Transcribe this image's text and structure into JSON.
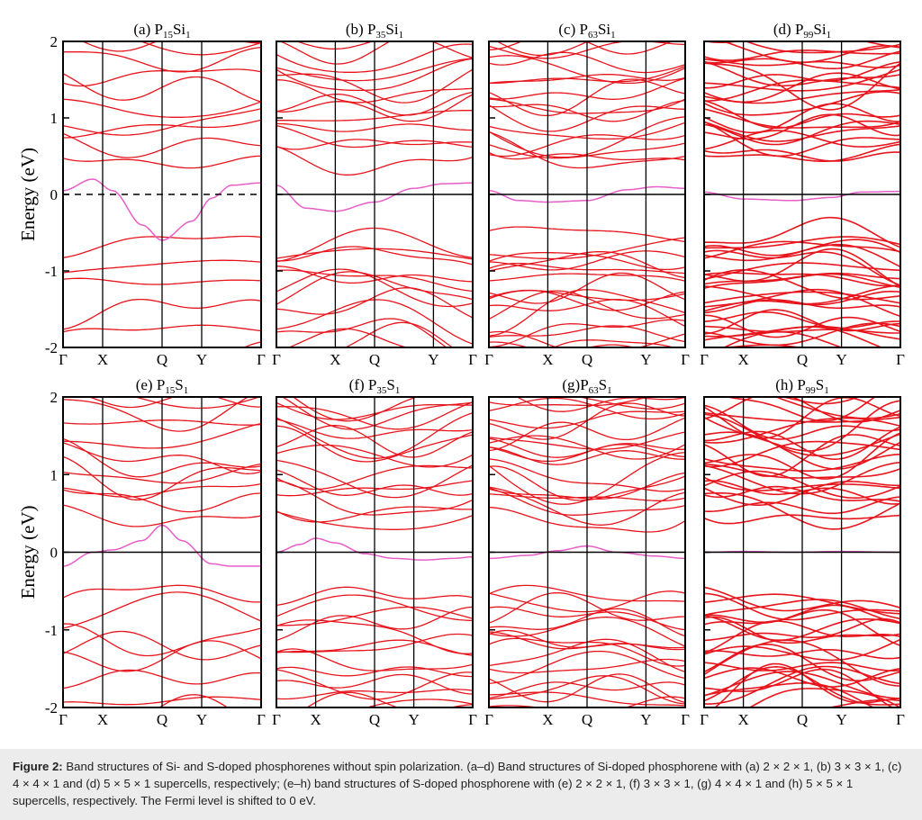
{
  "colors": {
    "band": "#e8141c",
    "defect_band": "#e85dc8",
    "axis": "#000000",
    "caption_bg": "#ececec"
  },
  "y_axis_label": "Energy (eV)",
  "caption": {
    "lead": "Figure 2:",
    "text": " Band structures of Si- and S-doped phosphorenes without spin polarization. (a–d) Band structures of Si-doped phosphorene with (a) 2 × 2 × 1, (b) 3 × 3 × 1, (c) 4 × 4 × 1 and (d) 5 × 5 × 1 supercells, respectively; (e–h) band structures of S-doped phosphorene with (e) 2 × 2 × 1, (f) 3 × 3 × 1, (g) 4 × 4 × 1 and (h) 5 × 5 × 1 supercells, respectively. The Fermi level is shifted to 0 eV."
  },
  "chart_data": [
    {
      "type": "line",
      "panel": "a",
      "title_prefix": "(a) P",
      "n1": "15",
      "title_mid": "Si",
      "n2": "1",
      "ylabel": "Energy (eV)",
      "ylim": [
        -2,
        2
      ],
      "yticks": [
        "2",
        "1",
        "0",
        "-1",
        "-2"
      ],
      "xticks": [
        "Γ",
        "X",
        "Q",
        "Y",
        "Γ"
      ],
      "fermi_dashed": true,
      "vb_count": 6,
      "cb_count": 10,
      "defect_band": {
        "x": [
          0,
          0.15,
          0.25,
          0.4,
          0.5,
          0.65,
          0.75,
          0.85,
          1
        ],
        "y": [
          0.05,
          0.2,
          0.05,
          -0.4,
          -0.6,
          -0.35,
          -0.05,
          0.12,
          0.15
        ]
      }
    },
    {
      "type": "line",
      "panel": "b",
      "title_prefix": "(b) P",
      "n1": "35",
      "title_mid": "Si",
      "n2": "1",
      "ylabel": "",
      "ylim": [
        -2,
        2
      ],
      "yticks": [],
      "xticks": [
        "Γ",
        "X",
        "Q",
        "Y",
        "Γ"
      ],
      "fermi_dashed": false,
      "vb_count": 12,
      "cb_count": 14,
      "defect_band": {
        "x": [
          0,
          0.15,
          0.3,
          0.5,
          0.7,
          0.85,
          1
        ],
        "y": [
          0.12,
          -0.18,
          -0.22,
          -0.1,
          0.08,
          0.14,
          0.15
        ]
      }
    },
    {
      "type": "line",
      "panel": "c",
      "title_prefix": "(c) P",
      "n1": "63",
      "title_mid": "Si",
      "n2": "1",
      "ylabel": "",
      "ylim": [
        -2,
        2
      ],
      "yticks": [],
      "xticks": [
        "Γ",
        "X",
        "Q",
        "Y",
        "Γ"
      ],
      "fermi_dashed": false,
      "vb_count": 18,
      "cb_count": 18,
      "defect_band": {
        "x": [
          0,
          0.15,
          0.3,
          0.5,
          0.7,
          0.85,
          1
        ],
        "y": [
          0.05,
          -0.08,
          -0.1,
          -0.08,
          0.06,
          0.1,
          0.08
        ]
      }
    },
    {
      "type": "line",
      "panel": "d",
      "title_prefix": "(d) P",
      "n1": "99",
      "title_mid": "Si",
      "n2": "1",
      "ylabel": "",
      "ylim": [
        -2,
        2
      ],
      "yticks": [],
      "xticks": [
        "Γ",
        "X",
        "Q",
        "Y",
        "Γ"
      ],
      "fermi_dashed": false,
      "vb_count": 26,
      "cb_count": 24,
      "defect_band": {
        "x": [
          0,
          0.2,
          0.45,
          0.65,
          0.8,
          1
        ],
        "y": [
          0.03,
          -0.06,
          -0.08,
          -0.04,
          0.03,
          0.04
        ]
      }
    },
    {
      "type": "line",
      "panel": "e",
      "title_prefix": "(e) P",
      "n1": "15",
      "title_mid": "S",
      "n2": "1",
      "ylabel": "Energy (eV)",
      "ylim": [
        -2,
        2
      ],
      "yticks": [
        "2",
        "1",
        "0",
        "-1",
        "-2"
      ],
      "xticks": [
        "Γ",
        "X",
        "Q",
        "Y",
        "Γ"
      ],
      "fermi_dashed": false,
      "vb_count": 8,
      "cb_count": 12,
      "defect_band": {
        "x": [
          0,
          0.15,
          0.25,
          0.4,
          0.5,
          0.6,
          0.75,
          0.85,
          1
        ],
        "y": [
          -0.18,
          0.0,
          0.03,
          0.15,
          0.35,
          0.15,
          -0.15,
          -0.18,
          -0.18
        ]
      }
    },
    {
      "type": "line",
      "panel": "f",
      "title_prefix": "(f) P",
      "n1": "35",
      "title_mid": "S",
      "n2": "1",
      "ylabel": "",
      "ylim": [
        -2,
        2
      ],
      "yticks": [],
      "xticks": [
        "Γ",
        "X",
        "Q",
        "Y",
        "Γ"
      ],
      "fermi_dashed": false,
      "vb_count": 14,
      "cb_count": 16,
      "defect_band": {
        "x": [
          0,
          0.12,
          0.2,
          0.3,
          0.45,
          0.6,
          0.75,
          0.9,
          1
        ],
        "y": [
          0.0,
          0.1,
          0.18,
          0.12,
          -0.02,
          -0.08,
          -0.1,
          -0.08,
          -0.06
        ]
      }
    },
    {
      "type": "line",
      "panel": "g",
      "title_prefix": "(g)P",
      "n1": "63",
      "title_mid": "S",
      "n2": "1",
      "ylabel": "",
      "ylim": [
        -2,
        2
      ],
      "yticks": [],
      "xticks": [
        "Γ",
        "X",
        "Q",
        "Y",
        "Γ"
      ],
      "fermi_dashed": false,
      "vb_count": 18,
      "cb_count": 20,
      "defect_band": {
        "x": [
          0,
          0.2,
          0.35,
          0.5,
          0.65,
          0.85,
          1
        ],
        "y": [
          -0.08,
          -0.04,
          0.02,
          0.08,
          0.0,
          -0.05,
          -0.08
        ]
      }
    },
    {
      "type": "line",
      "panel": "h",
      "title_prefix": "(h) P",
      "n1": "99",
      "title_mid": "S",
      "n2": "1",
      "ylabel": "",
      "ylim": [
        -2,
        2
      ],
      "yticks": [],
      "xticks": [
        "Γ",
        "X",
        "Q",
        "Y",
        "Γ"
      ],
      "fermi_dashed": false,
      "vb_count": 24,
      "cb_count": 26,
      "defect_band": {
        "x": [
          0,
          0.2,
          0.45,
          0.7,
          1
        ],
        "y": [
          0.0,
          0.01,
          0.0,
          0.01,
          0.0
        ]
      }
    }
  ]
}
